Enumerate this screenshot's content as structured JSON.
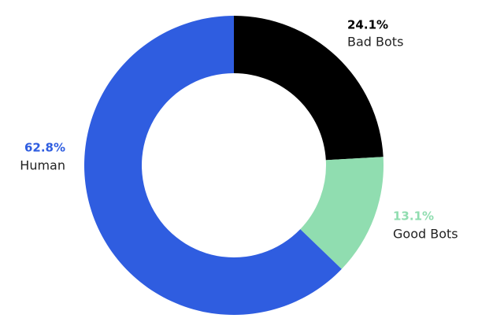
{
  "chart_data": {
    "type": "pie",
    "categories": [
      "Bad Bots",
      "Good Bots",
      "Human"
    ],
    "values": [
      24.1,
      13.1,
      62.8
    ],
    "value_labels": [
      "24.1%",
      "13.1%",
      "62.8%"
    ],
    "colors": [
      "#000000",
      "#90ddb0",
      "#2f5de0"
    ],
    "donut": true
  }
}
